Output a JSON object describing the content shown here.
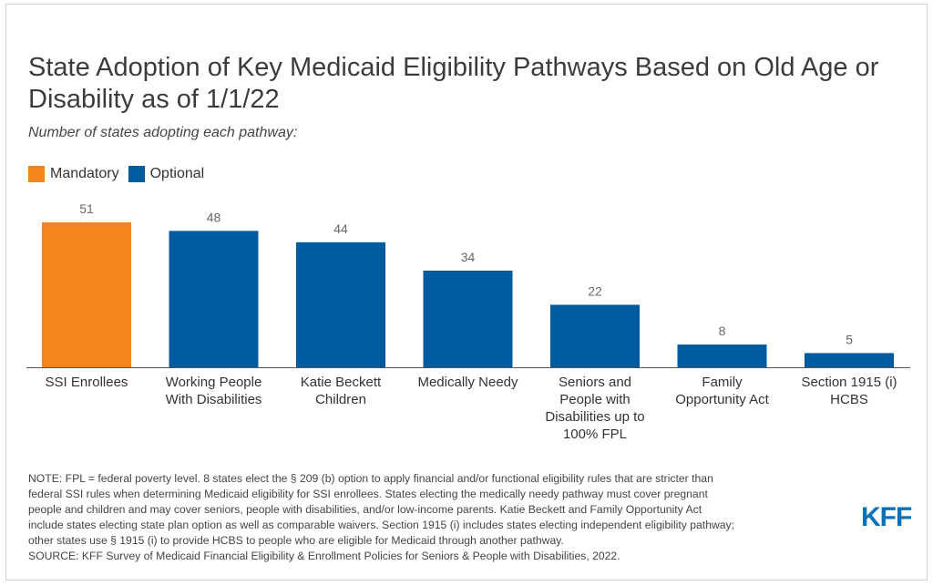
{
  "title": "State Adoption of Key Medicaid Eligibility Pathways Based on Old Age or Disability as of 1/1/22",
  "subtitle": "Number of states adopting each pathway:",
  "legend": [
    {
      "label": "Mandatory",
      "color": "#f5841f"
    },
    {
      "label": "Optional",
      "color": "#005ba0"
    }
  ],
  "chart_data": {
    "type": "bar",
    "title": "State Adoption of Key Medicaid Eligibility Pathways Based on Old Age or Disability as of 1/1/22",
    "ylabel": "Number of states adopting each pathway",
    "xlabel": "",
    "ylim": [
      0,
      51
    ],
    "grid": false,
    "legend_position": "top-left",
    "categories": [
      [
        "SSI Enrollees"
      ],
      [
        "Working People",
        "With Disabilities"
      ],
      [
        "Katie Beckett",
        "Children"
      ],
      [
        "Medically Needy"
      ],
      [
        "Seniors and",
        "People with",
        "Disabilities up to",
        "100% FPL"
      ],
      [
        "Family",
        "Opportunity Act"
      ],
      [
        "Section 1915 (i)",
        "HCBS"
      ]
    ],
    "values": [
      51,
      48,
      44,
      34,
      22,
      8,
      5
    ],
    "series_type": [
      "Mandatory",
      "Optional",
      "Optional",
      "Optional",
      "Optional",
      "Optional",
      "Optional"
    ]
  },
  "note_lines": [
    "NOTE: FPL = federal poverty level. 8 states elect the § 209 (b) option to apply financial and/or functional eligibility rules that are stricter than",
    "federal SSI rules when determining Medicaid eligibility for SSI enrollees. States electing the medically needy pathway must cover pregnant",
    "people and children and may cover seniors, people with disabilities, and/or low-income parents. Katie Beckett and Family Opportunity Act",
    "include states electing state plan option as well as comparable waivers. Section 1915 (i) includes states electing independent eligibility pathway;",
    "other states use § 1915 (i) to provide HCBS to people who are eligible for Medicaid through another pathway.",
    "SOURCE: KFF Survey of Medicaid Financial Eligibility & Enrollment Policies for Seniors & People with Disabilities, 2022."
  ],
  "logo": "KFF"
}
